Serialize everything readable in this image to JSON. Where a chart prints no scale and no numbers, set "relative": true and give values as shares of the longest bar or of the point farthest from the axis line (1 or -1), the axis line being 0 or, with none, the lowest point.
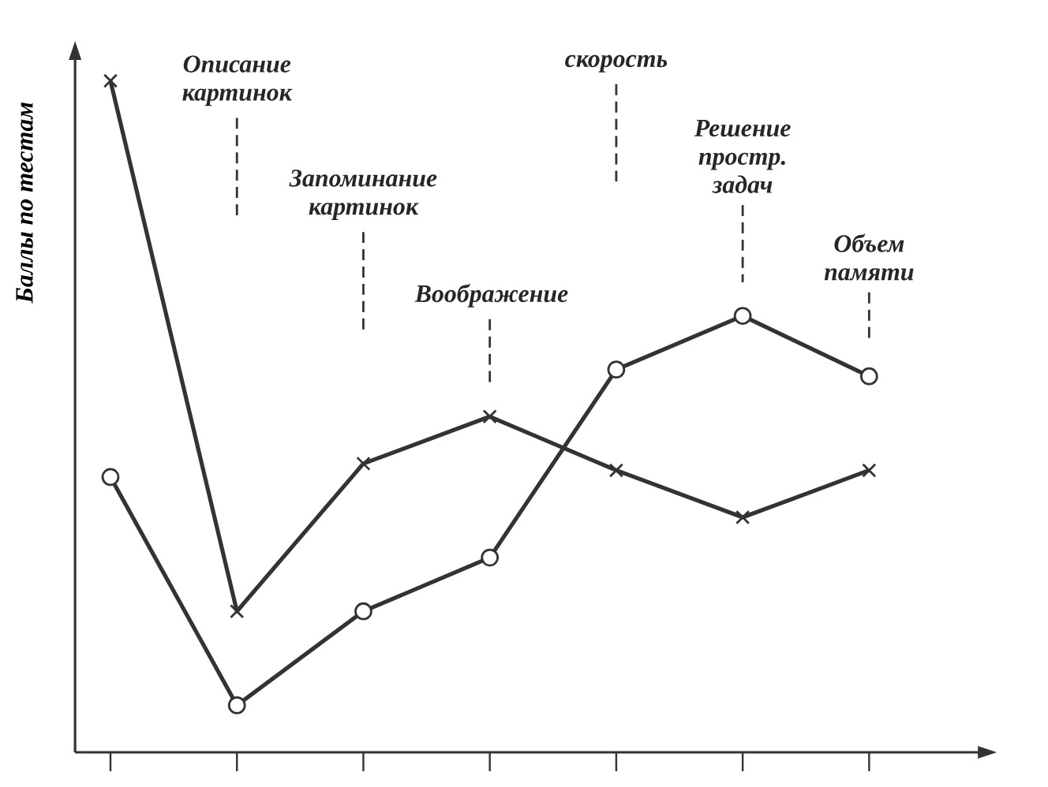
{
  "chart_data": {
    "type": "line",
    "relative": true,
    "ylabel": "Баллы по тестам",
    "categories": [
      null,
      "Описание картинок",
      "Запоминание картинок",
      "Воображение",
      "скорость",
      "Решение простр. задач",
      "Объем памяти"
    ],
    "series": [
      {
        "color": "#333333",
        "marker": "cross",
        "values": [
          1,
          0.21,
          0.43,
          0.5,
          0.42,
          0.35,
          0.42
        ]
      },
      {
        "color": "#333333",
        "marker": "circle",
        "values": [
          0.41,
          0.07,
          0.21,
          0.29,
          0.57,
          0.65,
          0.56
        ]
      }
    ]
  }
}
